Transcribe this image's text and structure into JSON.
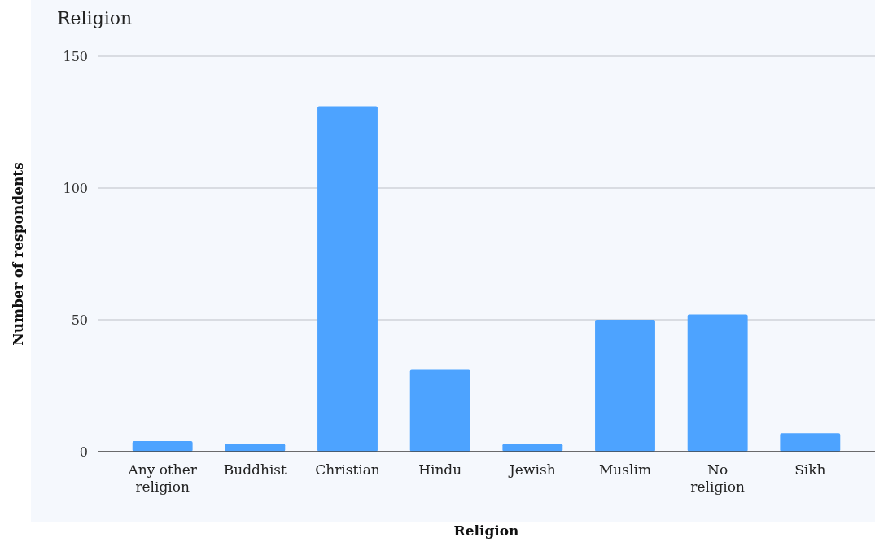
{
  "chart_data": {
    "type": "bar",
    "title": "Religion",
    "xlabel": "Religion",
    "ylabel": "Number of respondents",
    "categories": [
      "Any other religion",
      "Buddhist",
      "Christian",
      "Hindu",
      "Jewish",
      "Muslim",
      "No religion",
      "Sikh"
    ],
    "values": [
      4,
      3,
      131,
      31,
      3,
      50,
      52,
      7
    ],
    "color": "#4da3ff",
    "ylim": [
      0,
      150
    ],
    "yticks": [
      0,
      50,
      100,
      150
    ],
    "grid": "y"
  }
}
